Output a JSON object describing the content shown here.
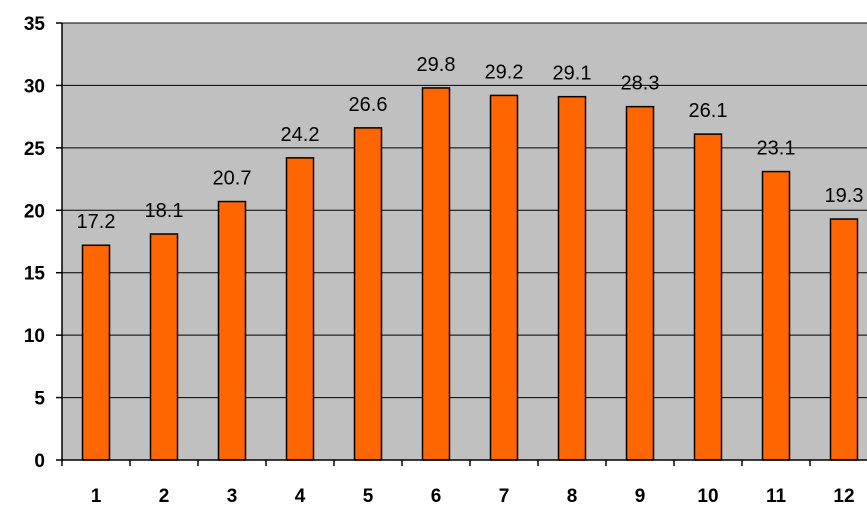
{
  "chart_data": {
    "type": "bar",
    "categories": [
      "1",
      "2",
      "3",
      "4",
      "5",
      "6",
      "7",
      "8",
      "9",
      "10",
      "11",
      "12"
    ],
    "values": [
      17.2,
      18.1,
      20.7,
      24.2,
      26.6,
      29.8,
      29.2,
      29.1,
      28.3,
      26.1,
      23.1,
      19.3
    ],
    "data_labels": [
      "17.2",
      "18.1",
      "20.7",
      "24.2",
      "26.6",
      "29.8",
      "29.2",
      "29.1",
      "28.3",
      "26.1",
      "23.1",
      "19.3"
    ],
    "y_ticks": [
      "0",
      "5",
      "10",
      "15",
      "20",
      "25",
      "30",
      "35"
    ],
    "ylim": [
      0,
      35
    ],
    "grid": true,
    "legend": "none",
    "colors": {
      "bar_fill": "#ff6600",
      "bar_stroke": "#000000",
      "plot_background": "#c0c0c0",
      "gridline": "#000000"
    }
  }
}
